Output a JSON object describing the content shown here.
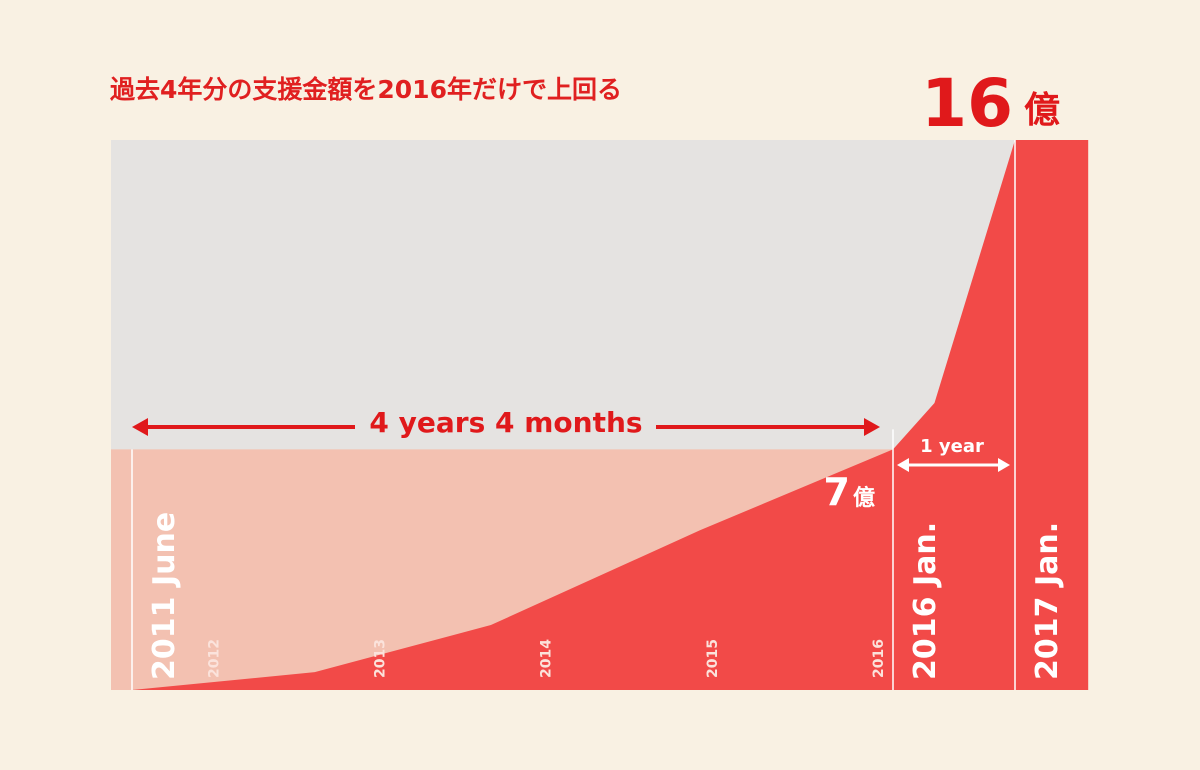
{
  "chart_data": {
    "type": "area",
    "title": "過去4年分の支援金額を2016年だけで上回る",
    "x": [
      2011.42,
      2012.52,
      2013.58,
      2014.84,
      2016,
      2016.34,
      2017,
      2017.6
    ],
    "values": [
      0,
      0.52,
      1.89,
      4.65,
      7,
      8.35,
      16,
      16
    ],
    "xlim": [
      2011.42,
      2017.6
    ],
    "ylim": [
      0,
      16
    ],
    "color": "#f24a48",
    "xticks": [
      2012,
      2013,
      2014,
      2015,
      2016
    ],
    "markers": [
      {
        "value": 2011.42,
        "label": "2011 June"
      },
      {
        "value": 2016,
        "label": "2016 Jan."
      },
      {
        "value": 2017,
        "label": "2017 Jan."
      }
    ],
    "annotations": [
      {
        "value": 16,
        "unit": "億"
      },
      {
        "value": 7,
        "unit": "億"
      }
    ],
    "spans": [
      {
        "label": "4 years 4 months"
      },
      {
        "label": "1 year"
      }
    ]
  }
}
